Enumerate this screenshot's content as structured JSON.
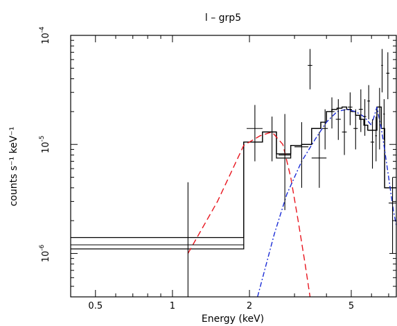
{
  "chart_data": {
    "type": "line",
    "title": "l – grp5",
    "xlabel": "Energy (keV)",
    "ylabel": "counts s⁻¹ keV⁻¹",
    "x_scale": "log",
    "y_scale": "log",
    "xlim": [
      0.4,
      7.5
    ],
    "ylim": [
      4e-07,
      0.0001
    ],
    "x_ticks": [
      {
        "value": 0.5,
        "label": "0.5"
      },
      {
        "value": 1,
        "label": "1"
      },
      {
        "value": 2,
        "label": "2"
      },
      {
        "value": 5,
        "label": "5"
      }
    ],
    "y_ticks": [
      {
        "value": 1e-06,
        "base": "10",
        "exp": "-6"
      },
      {
        "value": 1e-05,
        "base": "10",
        "exp": "-5"
      },
      {
        "value": 0.0001,
        "base": "10",
        "exp": "-4"
      }
    ],
    "data_points": [
      {
        "x": 1.15,
        "xlo": 0.4,
        "xhi": 1.9,
        "y": 1.2e-06,
        "ylo": 2e-07,
        "yhi": 4.5e-06
      },
      {
        "x": 2.1,
        "xlo": 1.95,
        "xhi": 2.25,
        "y": 1.4e-05,
        "ylo": 7e-06,
        "yhi": 2.3e-05
      },
      {
        "x": 2.45,
        "xlo": 2.35,
        "xhi": 2.55,
        "y": 1.3e-05,
        "ylo": 7e-06,
        "yhi": 1.8e-05
      },
      {
        "x": 2.75,
        "xlo": 2.6,
        "xhi": 2.9,
        "y": 8e-06,
        "ylo": 2.5e-06,
        "yhi": 1.9e-05
      },
      {
        "x": 3.2,
        "xlo": 3.0,
        "xhi": 3.4,
        "y": 9.5e-06,
        "ylo": 4e-06,
        "yhi": 1.6e-05
      },
      {
        "x": 3.45,
        "xlo": 3.38,
        "xhi": 3.52,
        "y": 5.3e-05,
        "ylo": 3.2e-05,
        "yhi": 7.5e-05
      },
      {
        "x": 3.75,
        "xlo": 3.5,
        "xhi": 4.0,
        "y": 7.5e-06,
        "ylo": 4e-06,
        "yhi": 1.3e-05
      },
      {
        "x": 3.95,
        "xlo": 3.85,
        "xhi": 4.05,
        "y": 1.4e-05,
        "ylo": 9e-06,
        "yhi": 2.1e-05
      },
      {
        "x": 4.2,
        "xlo": 4.1,
        "xhi": 4.3,
        "y": 2e-05,
        "ylo": 1.4e-05,
        "yhi": 2.7e-05
      },
      {
        "x": 4.45,
        "xlo": 4.35,
        "xhi": 4.55,
        "y": 1.7e-05,
        "ylo": 1.1e-05,
        "yhi": 2.6e-05
      },
      {
        "x": 4.7,
        "xlo": 4.6,
        "xhi": 4.8,
        "y": 1.3e-05,
        "ylo": 8e-06,
        "yhi": 2.1e-05
      },
      {
        "x": 4.95,
        "xlo": 4.85,
        "xhi": 5.05,
        "y": 2.2e-05,
        "ylo": 1.5e-05,
        "yhi": 3e-05
      },
      {
        "x": 5.2,
        "xlo": 5.1,
        "xhi": 5.3,
        "y": 1.4e-05,
        "ylo": 9e-06,
        "yhi": 2.1e-05
      },
      {
        "x": 5.45,
        "xlo": 5.35,
        "xhi": 5.55,
        "y": 2.1e-05,
        "ylo": 1.3e-05,
        "yhi": 3.2e-05
      },
      {
        "x": 5.65,
        "xlo": 5.58,
        "xhi": 5.72,
        "y": 1.8e-05,
        "ylo": 1.2e-05,
        "yhi": 2.6e-05
      },
      {
        "x": 5.85,
        "xlo": 5.78,
        "xhi": 5.92,
        "y": 2.5e-05,
        "ylo": 1.7e-05,
        "yhi": 3.5e-05
      },
      {
        "x": 6.05,
        "xlo": 5.95,
        "xhi": 6.15,
        "y": 1.05e-05,
        "ylo": 6e-06,
        "yhi": 1.7e-05
      },
      {
        "x": 6.25,
        "xlo": 6.2,
        "xhi": 6.3,
        "y": 1.2e-05,
        "ylo": 7e-06,
        "yhi": 1.8e-05
      },
      {
        "x": 6.45,
        "xlo": 6.38,
        "xhi": 6.52,
        "y": 2.2e-05,
        "ylo": 9e-06,
        "yhi": 3.3e-05
      },
      {
        "x": 6.6,
        "xlo": 6.55,
        "xhi": 6.65,
        "y": 5.3e-05,
        "ylo": 3e-05,
        "yhi": 7.5e-05
      },
      {
        "x": 6.72,
        "xlo": 6.67,
        "xhi": 6.77,
        "y": 1.9e-05,
        "ylo": 1.1e-05,
        "yhi": 2.6e-05
      },
      {
        "x": 6.95,
        "xlo": 6.85,
        "xhi": 7.05,
        "y": 4.5e-05,
        "ylo": 2.6e-05,
        "yhi": 7e-05
      },
      {
        "x": 7.25,
        "xlo": 7.0,
        "xhi": 7.5,
        "y": 2.9e-06,
        "ylo": 1e-06,
        "yhi": 5e-06
      }
    ],
    "series": [
      {
        "style": "step",
        "color": "#000000",
        "edges": [
          0.4,
          1.9,
          2.25,
          2.55,
          2.9,
          3.2,
          3.5,
          3.8,
          4.0,
          4.2,
          4.4,
          4.6,
          4.8,
          5.0,
          5.2,
          5.4,
          5.6,
          5.8,
          6.0,
          6.3,
          6.55,
          6.75,
          7.1,
          7.5
        ],
        "values": [
          1.1e-06,
          1.05e-05,
          1.3e-05,
          8.2e-06,
          9.8e-06,
          1e-05,
          1.4e-05,
          1.6e-05,
          2e-05,
          2.1e-05,
          2.15e-05,
          2.2e-05,
          2.1e-05,
          2e-05,
          1.85e-05,
          1.7e-05,
          1.5e-05,
          1.35e-05,
          1.35e-05,
          2.2e-05,
          1.4e-05,
          4e-06,
          4e-06
        ]
      },
      {
        "style": "step",
        "color": "#000000",
        "edges": [
          0.4,
          1.9,
          2.25,
          2.55,
          2.9,
          3.2,
          3.5,
          3.8,
          4.0,
          4.2,
          4.4,
          4.6,
          4.8,
          5.0,
          5.2,
          5.4,
          5.6,
          5.8,
          6.0,
          6.3,
          6.55,
          6.75,
          7.1,
          7.5
        ],
        "values": [
          1.4e-06,
          1.05e-05,
          1.3e-05,
          7.5e-06,
          9.8e-06,
          1e-05,
          1.4e-05,
          1.6e-05,
          2e-05,
          2.1e-05,
          2.15e-05,
          2.2e-05,
          2.1e-05,
          2e-05,
          1.85e-05,
          1.7e-05,
          1.5e-05,
          1.35e-05,
          1.35e-05,
          2.2e-05,
          1.4e-05,
          4e-06,
          4e-06
        ]
      },
      {
        "style": "dashed",
        "color": "#e8141d",
        "x": [
          1.15,
          1.5,
          1.9,
          2.2,
          2.45,
          2.7,
          2.9,
          3.1,
          3.3,
          3.45
        ],
        "y": [
          1e-06,
          3e-06,
          9.8e-06,
          1.2e-05,
          1.3e-05,
          1e-05,
          5e-06,
          2e-06,
          8e-07,
          4e-07
        ]
      },
      {
        "style": "dashdot",
        "color": "#1a2bd6",
        "x": [
          2.15,
          2.5,
          2.8,
          3.2,
          3.6,
          4.0,
          4.4,
          4.8,
          5.2,
          5.6,
          6.0,
          6.3,
          6.55,
          6.75,
          7.0,
          7.3,
          7.5
        ],
        "y": [
          4e-07,
          1.5e-06,
          3.5e-06,
          7e-06,
          1.1e-05,
          1.6e-05,
          2e-05,
          2.1e-05,
          2e-05,
          1.8e-05,
          1.5e-05,
          2.2e-05,
          1.4e-05,
          9e-06,
          5e-06,
          2.5e-06,
          1.8e-06
        ]
      }
    ]
  }
}
